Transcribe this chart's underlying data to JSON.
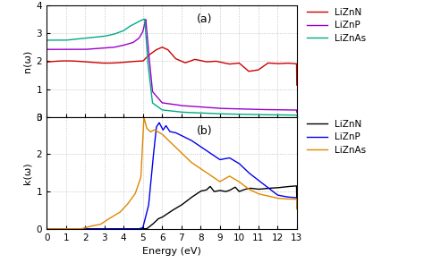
{
  "title_a": "(a)",
  "title_b": "(b)",
  "xlabel": "Energy (eV)",
  "ylabel_a": "n(ω)",
  "ylabel_b": "k(ω)",
  "xlim": [
    0,
    13
  ],
  "ylim_a": [
    0,
    4
  ],
  "ylim_b": [
    0,
    3
  ],
  "yticks_a": [
    0,
    1,
    2,
    3,
    4
  ],
  "yticks_b": [
    0,
    1,
    2,
    3
  ],
  "xticks": [
    0,
    1,
    2,
    3,
    4,
    5,
    6,
    7,
    8,
    9,
    10,
    11,
    12,
    13
  ],
  "legend_a": [
    "LiZnN",
    "LiZnP",
    "LiZnAs"
  ],
  "legend_b": [
    "LiZnN",
    "LiZnP",
    "LiZnAs"
  ],
  "colors_a": [
    "#cc0000",
    "#9900cc",
    "#00aa88"
  ],
  "colors_b": [
    "#000000",
    "#0000ee",
    "#dd8800"
  ],
  "background": "#ffffff",
  "grid_color": "#bbbbbb",
  "grid_style": "dotted"
}
